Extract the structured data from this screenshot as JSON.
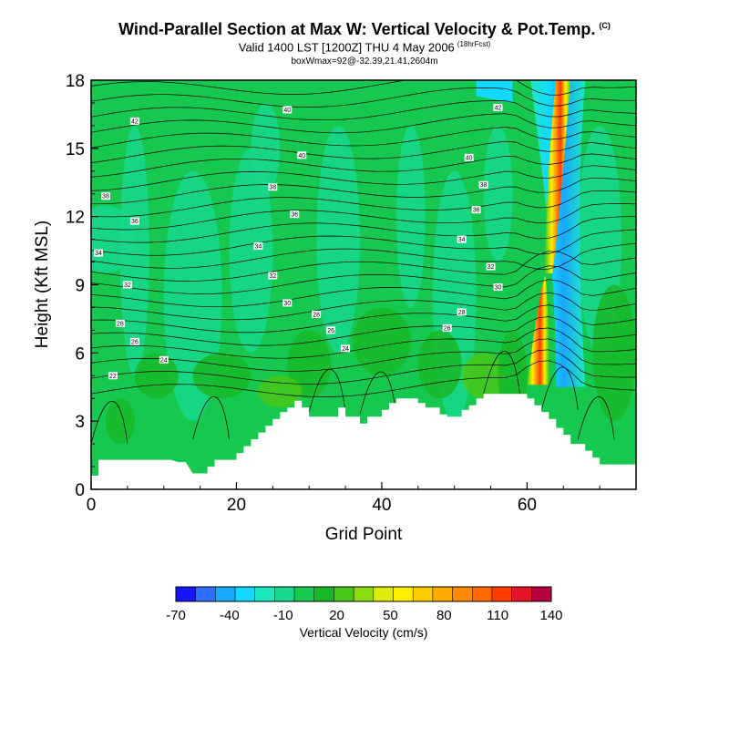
{
  "header": {
    "title": "Wind-Parallel Section at Max W: Vertical Velocity & Pot.Temp.",
    "title_tag": "(C)",
    "subtitle": "Valid 1400 LST [1200Z] THU 4 May 2006",
    "subtitle_tag": "(18hrFcst)",
    "note": "boxWmax=92@-32.39,21.41,2604m"
  },
  "chart_data": {
    "type": "heatmap",
    "xlabel": "Grid Point",
    "ylabel": "Height (Kft MSL)",
    "xlim": [
      0,
      75
    ],
    "ylim": [
      0,
      18
    ],
    "x_ticks": [
      0,
      20,
      40,
      60
    ],
    "y_ticks": [
      0,
      3,
      6,
      9,
      12,
      15,
      18
    ],
    "colorbar": {
      "label": "Vertical Velocity (cm/s)",
      "tick_labels": [
        "-70",
        "-40",
        "-10",
        "20",
        "50",
        "80",
        "110",
        "140"
      ],
      "colors": [
        "#1414ff",
        "#2d6dff",
        "#18a8ff",
        "#13d9ff",
        "#1ce8c0",
        "#18d88c",
        "#16c850",
        "#18b828",
        "#48c818",
        "#8edc10",
        "#dcec0c",
        "#fff000",
        "#ffcc00",
        "#ffaa00",
        "#ff8a00",
        "#ff6a00",
        "#ff3c00",
        "#e61428",
        "#b4003c"
      ],
      "vmin": -70,
      "vmax": 140
    },
    "background_velocity_cm_s": 0,
    "updraft_band": {
      "x_range": [
        60,
        66
      ],
      "max_velocity": 140
    },
    "downdraft_band": {
      "x_range": [
        62,
        68
      ],
      "min_velocity": -40
    },
    "terrain_kft": [
      [
        0,
        0.6
      ],
      [
        1,
        0.6
      ],
      [
        1,
        1.3
      ],
      [
        11,
        1.3
      ],
      [
        12,
        1.2
      ],
      [
        13,
        1.2
      ],
      [
        14,
        0.7
      ],
      [
        16,
        0.7
      ],
      [
        16,
        1.0
      ],
      [
        17,
        1.0
      ],
      [
        17,
        1.3
      ],
      [
        20,
        1.3
      ],
      [
        20,
        1.6
      ],
      [
        21,
        1.6
      ],
      [
        21,
        1.9
      ],
      [
        22,
        1.9
      ],
      [
        22,
        2.2
      ],
      [
        23,
        2.2
      ],
      [
        23,
        2.5
      ],
      [
        24,
        2.5
      ],
      [
        24,
        2.8
      ],
      [
        25,
        2.8
      ],
      [
        25,
        3.1
      ],
      [
        26,
        3.1
      ],
      [
        26,
        3.4
      ],
      [
        27,
        3.4
      ],
      [
        27,
        3.6
      ],
      [
        28,
        3.6
      ],
      [
        28,
        3.9
      ],
      [
        29,
        3.9
      ],
      [
        29,
        3.6
      ],
      [
        30,
        3.6
      ],
      [
        30,
        3.2
      ],
      [
        34,
        3.2
      ],
      [
        34,
        3.6
      ],
      [
        35,
        3.6
      ],
      [
        35,
        3.2
      ],
      [
        37,
        3.2
      ],
      [
        37,
        2.9
      ],
      [
        38,
        2.9
      ],
      [
        38,
        3.2
      ],
      [
        40,
        3.2
      ],
      [
        40,
        3.5
      ],
      [
        41,
        3.5
      ],
      [
        41,
        3.8
      ],
      [
        42,
        3.8
      ],
      [
        42,
        4.0
      ],
      [
        45,
        4.0
      ],
      [
        45,
        3.8
      ],
      [
        46,
        3.8
      ],
      [
        46,
        3.6
      ],
      [
        48,
        3.6
      ],
      [
        48,
        3.3
      ],
      [
        49,
        3.3
      ],
      [
        49,
        3.2
      ],
      [
        51,
        3.2
      ],
      [
        51,
        3.5
      ],
      [
        52,
        3.5
      ],
      [
        52,
        3.7
      ],
      [
        53,
        3.7
      ],
      [
        53,
        4.0
      ],
      [
        54,
        4.0
      ],
      [
        54,
        4.2
      ],
      [
        60,
        4.2
      ],
      [
        60,
        4.0
      ],
      [
        61,
        4.0
      ],
      [
        61,
        3.7
      ],
      [
        62,
        3.7
      ],
      [
        62,
        3.4
      ],
      [
        63,
        3.4
      ],
      [
        63,
        3.1
      ],
      [
        64,
        3.1
      ],
      [
        64,
        2.7
      ],
      [
        65,
        2.7
      ],
      [
        65,
        2.4
      ],
      [
        66,
        2.4
      ],
      [
        66,
        2.0
      ],
      [
        68,
        2.0
      ],
      [
        68,
        1.7
      ],
      [
        69,
        1.7
      ],
      [
        69,
        1.4
      ],
      [
        70,
        1.4
      ],
      [
        70,
        1.1
      ],
      [
        75,
        1.1
      ]
    ],
    "contour_labels": [
      {
        "x": 6,
        "y": 16.2,
        "text": "42"
      },
      {
        "x": 27,
        "y": 16.7,
        "text": "40"
      },
      {
        "x": 56,
        "y": 16.8,
        "text": "42"
      },
      {
        "x": 29,
        "y": 14.7,
        "text": "40"
      },
      {
        "x": 52,
        "y": 14.6,
        "text": "40"
      },
      {
        "x": 2,
        "y": 12.9,
        "text": "38"
      },
      {
        "x": 25,
        "y": 13.3,
        "text": "38"
      },
      {
        "x": 54,
        "y": 13.4,
        "text": "38"
      },
      {
        "x": 6,
        "y": 11.8,
        "text": "36"
      },
      {
        "x": 28,
        "y": 12.1,
        "text": "36"
      },
      {
        "x": 53,
        "y": 12.3,
        "text": "36"
      },
      {
        "x": 1,
        "y": 10.4,
        "text": "34"
      },
      {
        "x": 23,
        "y": 10.7,
        "text": "34"
      },
      {
        "x": 51,
        "y": 11.0,
        "text": "34"
      },
      {
        "x": 5,
        "y": 9.0,
        "text": "32"
      },
      {
        "x": 25,
        "y": 9.4,
        "text": "32"
      },
      {
        "x": 55,
        "y": 9.8,
        "text": "32"
      },
      {
        "x": 27,
        "y": 8.2,
        "text": "30"
      },
      {
        "x": 56,
        "y": 8.9,
        "text": "30"
      },
      {
        "x": 4,
        "y": 7.3,
        "text": "28"
      },
      {
        "x": 31,
        "y": 7.7,
        "text": "28"
      },
      {
        "x": 51,
        "y": 7.8,
        "text": "28"
      },
      {
        "x": 6,
        "y": 6.5,
        "text": "26"
      },
      {
        "x": 33,
        "y": 7.0,
        "text": "26"
      },
      {
        "x": 49,
        "y": 7.1,
        "text": "26"
      },
      {
        "x": 10,
        "y": 5.7,
        "text": "24"
      },
      {
        "x": 35,
        "y": 6.2,
        "text": "24"
      },
      {
        "x": 3,
        "y": 5.0,
        "text": "22"
      }
    ]
  }
}
